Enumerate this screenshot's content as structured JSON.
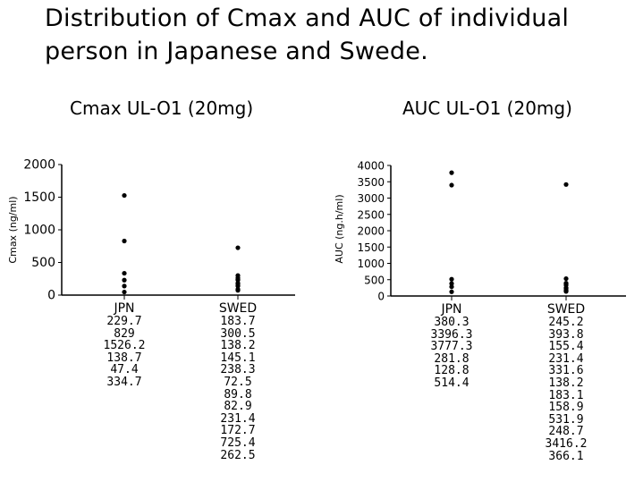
{
  "title": "Distribution of Cmax and AUC of individual person in Japanese and Swede.",
  "chart_data": [
    {
      "type": "scatter",
      "title": "Cmax UL-O1 (20mg)",
      "ylabel": "Cmax (ng/ml)",
      "xlabel": "",
      "categories": [
        "JPN",
        "SWED"
      ],
      "ylim": [
        0,
        2000
      ],
      "yticks": [
        0,
        500,
        1000,
        1500,
        2000
      ],
      "grid": false,
      "series": [
        {
          "name": "JPN",
          "values": [
            229.7,
            829,
            1526.2,
            138.7,
            47.4,
            334.7
          ]
        },
        {
          "name": "SWED",
          "values": [
            183.7,
            300.5,
            138.2,
            145.1,
            238.3,
            72.5,
            89.8,
            82.9,
            231.4,
            172.7,
            725.4,
            262.5
          ]
        }
      ]
    },
    {
      "type": "scatter",
      "title": "AUC UL-O1 (20mg)",
      "ylabel": "AUC (ng.h/ml)",
      "xlabel": "",
      "categories": [
        "JPN",
        "SWED"
      ],
      "ylim": [
        0,
        4000
      ],
      "yticks": [
        0,
        500,
        1000,
        1500,
        2000,
        2500,
        3000,
        3500,
        4000
      ],
      "grid": false,
      "series": [
        {
          "name": "JPN",
          "values": [
            380.3,
            3396.3,
            3777.3,
            281.8,
            128.8,
            514.4
          ]
        },
        {
          "name": "SWED",
          "values": [
            245.2,
            393.8,
            155.4,
            231.4,
            331.6,
            138.2,
            183.1,
            158.9,
            531.9,
            248.7,
            3416.2,
            366.1
          ]
        }
      ]
    }
  ]
}
